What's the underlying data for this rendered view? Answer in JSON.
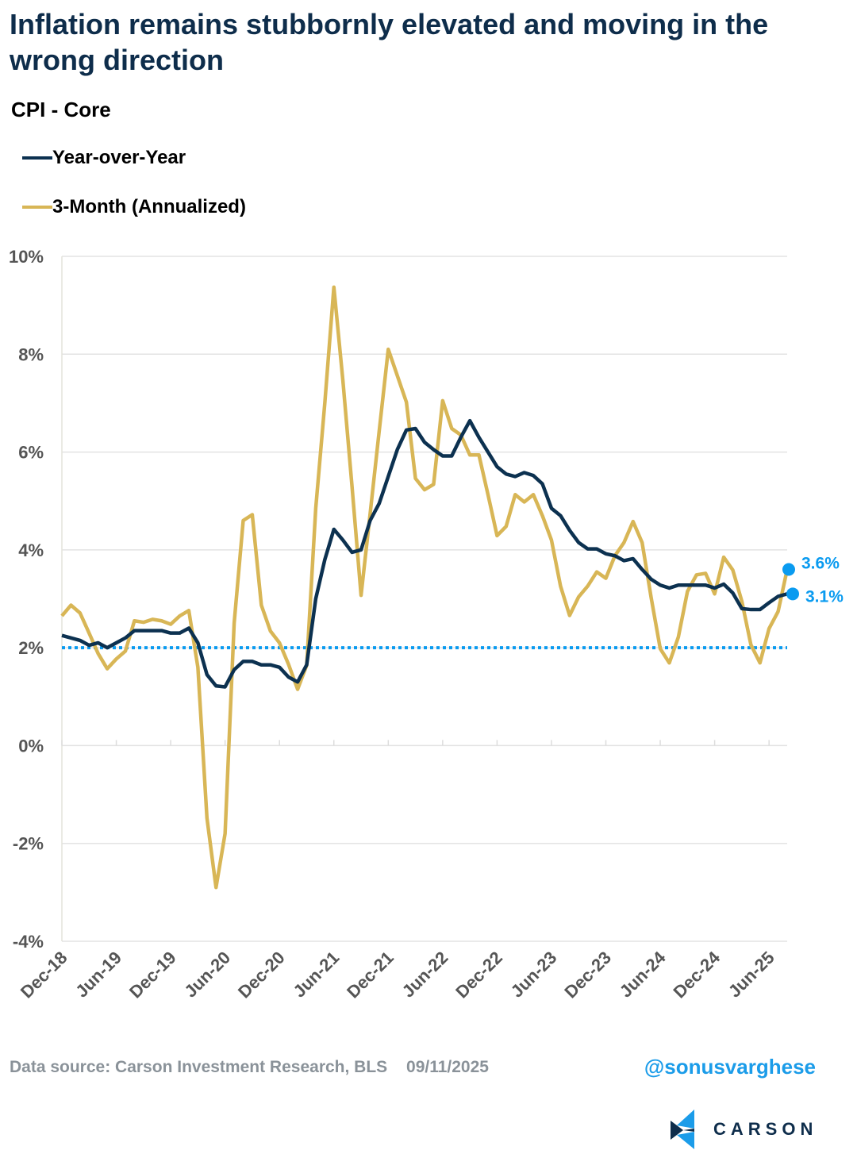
{
  "title": "Inflation remains stubbornly elevated and moving in the wrong direction",
  "footer": {
    "source": "Data source: Carson Investment Research, BLS",
    "date": "09/11/2025",
    "handle": "@sonusvarghese",
    "logo": "CARSON"
  },
  "colors": {
    "yoy": "#0c3150",
    "three_month": "#d8b656",
    "target": "#0a9bf0",
    "annotation": "#0a9bf0",
    "grid": "#e3e3e3"
  },
  "chart_data": {
    "type": "line",
    "title": "CPI - Core",
    "xlabel": "",
    "ylabel": "",
    "ylim": [
      -4,
      10
    ],
    "yticks": [
      -4,
      -2,
      0,
      2,
      4,
      6,
      8,
      10
    ],
    "ytick_labels": [
      "-4%",
      "-2%",
      "0%",
      "2%",
      "4%",
      "6%",
      "8%",
      "10%"
    ],
    "x_start": "Dec-18",
    "x_end": "Aug-25",
    "x_frequency": "monthly",
    "xtick_labels": [
      "Dec-18",
      "Jun-19",
      "Dec-19",
      "Jun-20",
      "Dec-20",
      "Jun-21",
      "Dec-21",
      "Jun-22",
      "Dec-22",
      "Jun-23",
      "Dec-23",
      "Jun-24",
      "Dec-24",
      "Jun-25"
    ],
    "grid": true,
    "legend_placement": "top-left",
    "reference_line": {
      "value": 2,
      "style": "dotted"
    },
    "series": [
      {
        "name": "Year-over-Year",
        "values": [
          2.25,
          2.2,
          2.15,
          2.05,
          2.1,
          2.0,
          2.1,
          2.2,
          2.35,
          2.35,
          2.35,
          2.35,
          2.3,
          2.3,
          2.4,
          2.1,
          1.45,
          1.22,
          1.2,
          1.55,
          1.72,
          1.72,
          1.65,
          1.65,
          1.6,
          1.4,
          1.3,
          1.65,
          3.0,
          3.8,
          4.42,
          4.2,
          3.95,
          4.0,
          4.6,
          4.95,
          5.5,
          6.05,
          6.45,
          6.48,
          6.2,
          6.05,
          5.92,
          5.92,
          6.3,
          6.64,
          6.3,
          6.0,
          5.7,
          5.55,
          5.5,
          5.58,
          5.52,
          5.35,
          4.85,
          4.7,
          4.4,
          4.15,
          4.02,
          4.02,
          3.92,
          3.88,
          3.78,
          3.82,
          3.6,
          3.4,
          3.28,
          3.22,
          3.28,
          3.28,
          3.28,
          3.28,
          3.22,
          3.3,
          3.12,
          2.8,
          2.78,
          2.78,
          2.92,
          3.05,
          3.1
        ],
        "end_label": "3.1%"
      },
      {
        "name": "3-Month (Annualized)",
        "values": [
          2.65,
          2.87,
          2.71,
          2.3,
          1.88,
          1.57,
          1.77,
          1.93,
          2.55,
          2.52,
          2.58,
          2.55,
          2.48,
          2.65,
          2.76,
          1.6,
          -1.48,
          -2.9,
          -1.8,
          2.5,
          4.6,
          4.72,
          2.87,
          2.34,
          2.1,
          1.66,
          1.15,
          1.64,
          4.85,
          7.0,
          9.37,
          7.45,
          5.3,
          3.07,
          4.74,
          6.43,
          8.1,
          7.56,
          7.02,
          5.46,
          5.23,
          5.34,
          7.05,
          6.48,
          6.35,
          5.94,
          5.94,
          5.13,
          4.29,
          4.48,
          5.13,
          4.98,
          5.13,
          4.7,
          4.2,
          3.26,
          2.66,
          3.04,
          3.26,
          3.55,
          3.42,
          3.88,
          4.15,
          4.58,
          4.15,
          3.02,
          1.98,
          1.69,
          2.22,
          3.15,
          3.49,
          3.52,
          3.1,
          3.85,
          3.59,
          2.95,
          2.06,
          1.69,
          2.39,
          2.74,
          3.6
        ],
        "end_label": "3.6%"
      }
    ]
  }
}
